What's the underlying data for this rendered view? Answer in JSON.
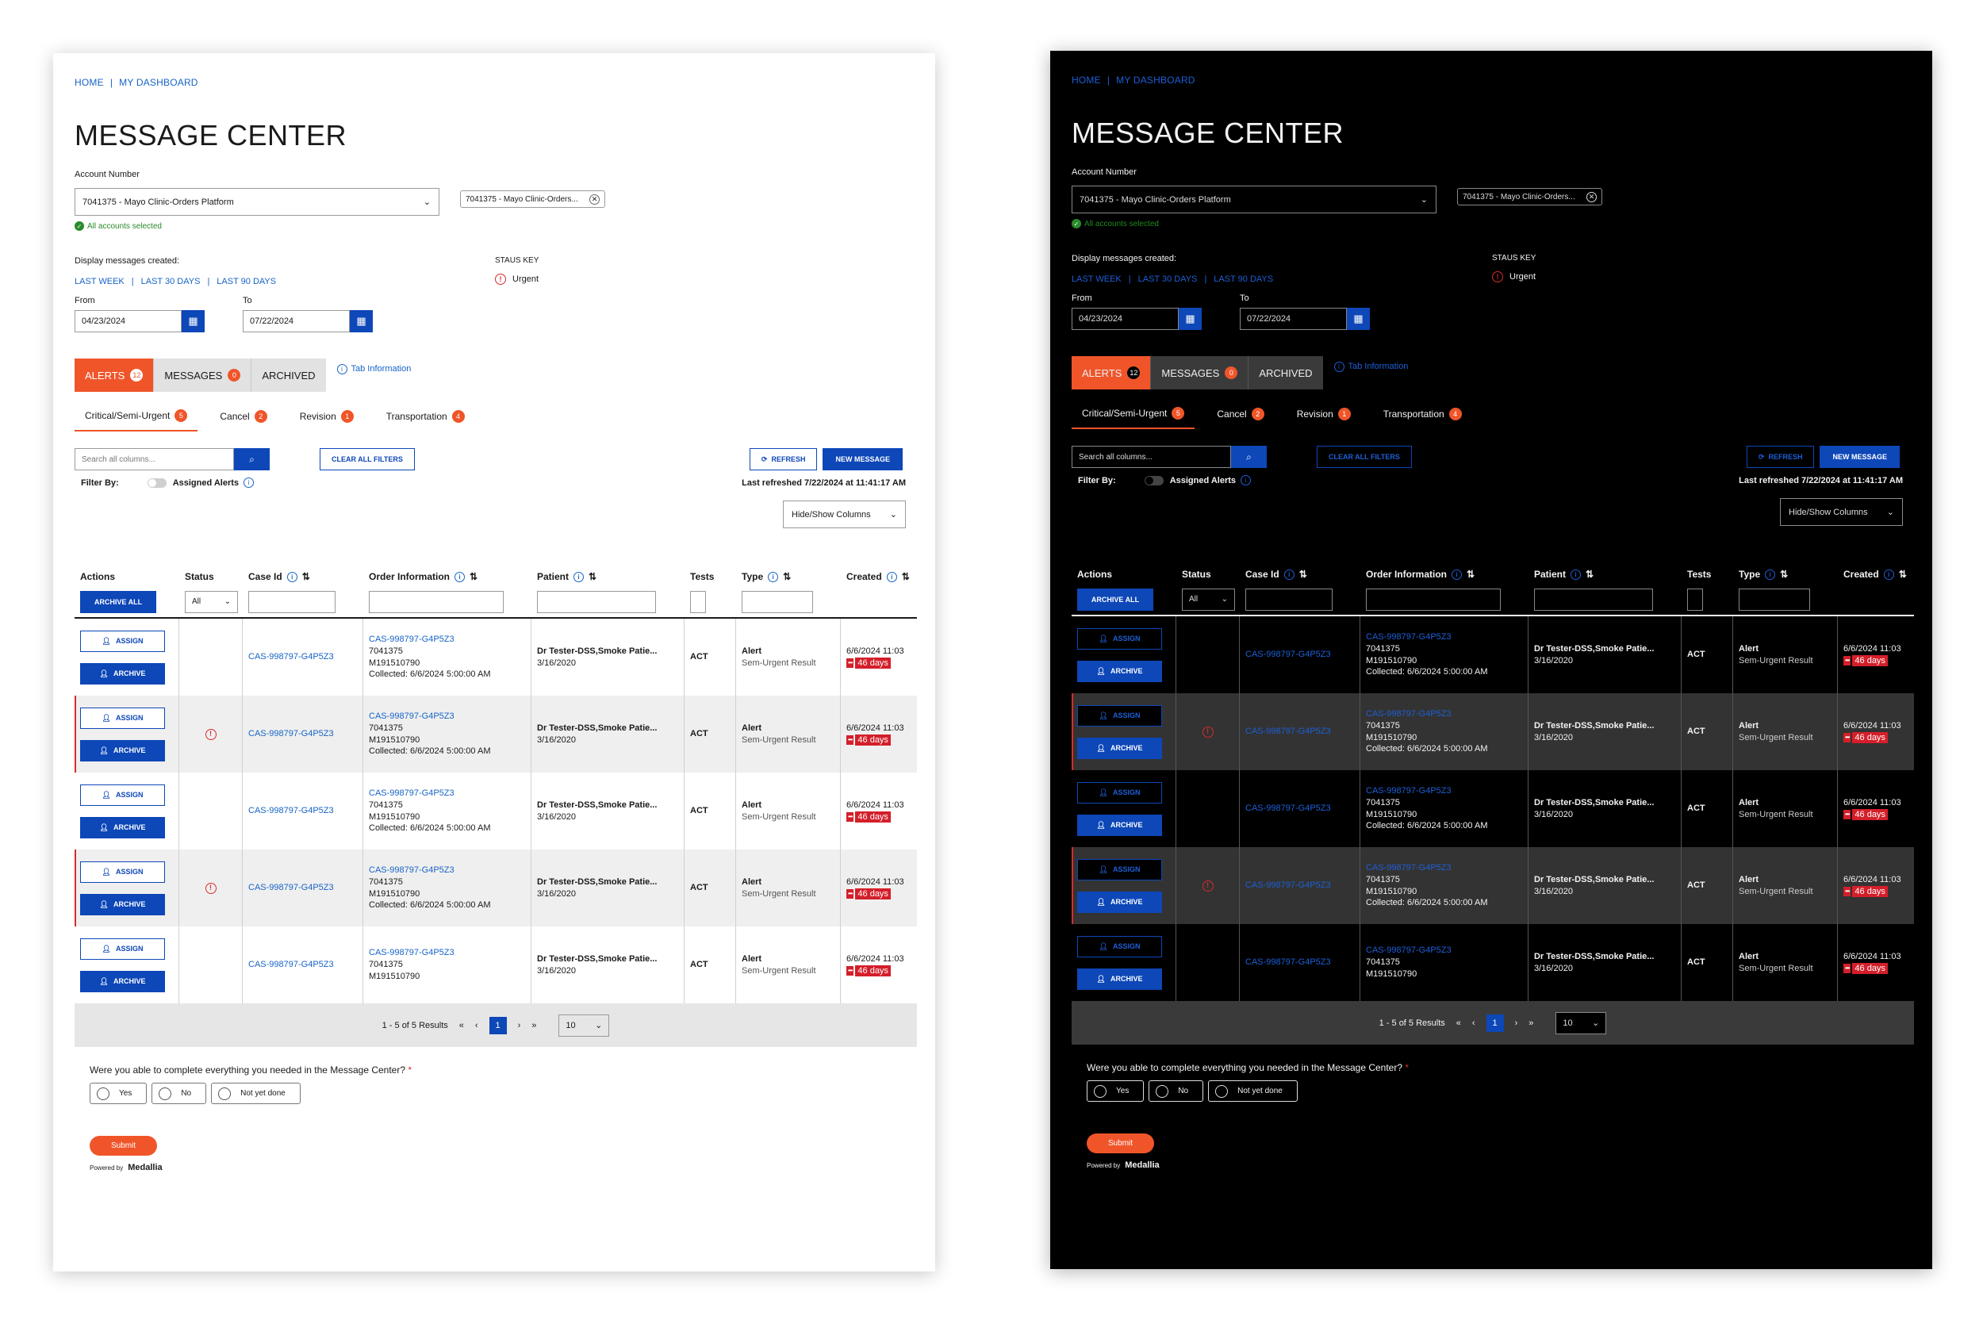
{
  "breadcrumb": {
    "home": "HOME",
    "sep": "|",
    "dashboard": "MY DASHBOARD"
  },
  "page_title": "MESSAGE CENTER",
  "account": {
    "label": "Account Number",
    "selected": "7041375 - Mayo Clinic-Orders Platform",
    "chip": "7041375 - Mayo Clinic-Orders...",
    "all_selected": "All accounts selected"
  },
  "display": {
    "label": "Display messages created:",
    "quick": [
      "LAST WEEK",
      "LAST 30 DAYS",
      "LAST 90 DAYS"
    ],
    "sep": "|",
    "from_label": "From",
    "from_value": "04/23/2024",
    "to_label": "To",
    "to_value": "07/22/2024"
  },
  "status_key": {
    "title": "STAUS KEY",
    "urgent": "Urgent",
    "urgent_glyph": "!"
  },
  "tabs": [
    {
      "label": "ALERTS",
      "badge": "12"
    },
    {
      "label": "MESSAGES",
      "badge": "0"
    },
    {
      "label": "ARCHIVED",
      "badge": ""
    }
  ],
  "tab_info": "Tab Information",
  "subtabs": [
    {
      "label": "Critical/Semi-Urgent",
      "badge": "5"
    },
    {
      "label": "Cancel",
      "badge": "2"
    },
    {
      "label": "Revision",
      "badge": "1"
    },
    {
      "label": "Transportation",
      "badge": "4"
    }
  ],
  "toolbar": {
    "search_placeholder": "Search all columns...",
    "clear_filters": "CLEAR ALL FILTERS",
    "refresh": "REFRESH",
    "new_message": "NEW MESSAGE",
    "filter_by": "Filter By:",
    "assigned_alerts": "Assigned Alerts",
    "last_refreshed": "Last refreshed 7/22/2024 at 11:41:17 AM",
    "hide_show": "Hide/Show Columns"
  },
  "table": {
    "headers": {
      "actions": "Actions",
      "status": "Status",
      "case_id": "Case Id",
      "order_info": "Order Information",
      "patient": "Patient",
      "tests": "Tests",
      "type": "Type",
      "created": "Created"
    },
    "archive_all": "ARCHIVE ALL",
    "status_filter": "All",
    "assign_label": "ASSIGN",
    "archive_label": "ARCHIVE",
    "rows": [
      {
        "urgent": false,
        "case_id": "CAS-998797-G4P5Z3",
        "order_id": "CAS-998797-G4P5Z3",
        "order_acct": "7041375",
        "order_num": "M191510790",
        "collected": "Collected: 6/6/2024 5:00:00 AM",
        "patient": "Dr Tester-DSS,Smoke Patie...",
        "dob": "3/16/2020",
        "tests": "ACT",
        "type": "Alert",
        "type_sub": "Sem-Urgent Result",
        "created": "6/6/2024 11:03",
        "dots": "•••",
        "days": "46 days"
      },
      {
        "urgent": true,
        "case_id": "CAS-998797-G4P5Z3",
        "order_id": "CAS-998797-G4P5Z3",
        "order_acct": "7041375",
        "order_num": "M191510790",
        "collected": "Collected: 6/6/2024 5:00:00 AM",
        "patient": "Dr Tester-DSS,Smoke Patie...",
        "dob": "3/16/2020",
        "tests": "ACT",
        "type": "Alert",
        "type_sub": "Sem-Urgent Result",
        "created": "6/6/2024 11:03",
        "dots": "•••",
        "days": "46 days"
      },
      {
        "urgent": false,
        "case_id": "CAS-998797-G4P5Z3",
        "order_id": "CAS-998797-G4P5Z3",
        "order_acct": "7041375",
        "order_num": "M191510790",
        "collected": "Collected: 6/6/2024 5:00:00 AM",
        "patient": "Dr Tester-DSS,Smoke Patie...",
        "dob": "3/16/2020",
        "tests": "ACT",
        "type": "Alert",
        "type_sub": "Sem-Urgent Result",
        "created": "6/6/2024 11:03",
        "dots": "•••",
        "days": "46 days"
      },
      {
        "urgent": true,
        "case_id": "CAS-998797-G4P5Z3",
        "order_id": "CAS-998797-G4P5Z3",
        "order_acct": "7041375",
        "order_num": "M191510790",
        "collected": "Collected: 6/6/2024 5:00:00 AM",
        "patient": "Dr Tester-DSS,Smoke Patie...",
        "dob": "3/16/2020",
        "tests": "ACT",
        "type": "Alert",
        "type_sub": "Sem-Urgent Result",
        "created": "6/6/2024 11:03",
        "dots": "•••",
        "days": "46 days"
      },
      {
        "urgent": false,
        "case_id": "CAS-998797-G4P5Z3",
        "order_id": "CAS-998797-G4P5Z3",
        "order_acct": "7041375",
        "order_num": "M191510790",
        "collected": "",
        "patient": "Dr Tester-DSS,Smoke Patie...",
        "dob": "3/16/2020",
        "tests": "ACT",
        "type": "Alert",
        "type_sub": "Sem-Urgent Result",
        "created": "6/6/2024 11:03",
        "dots": "•••",
        "days": "46 days"
      }
    ]
  },
  "pager": {
    "summary": "1 - 5 of 5 Results",
    "first": "«",
    "prev": "‹",
    "page": "1",
    "next": "›",
    "last": "»",
    "per_page": "10"
  },
  "survey": {
    "question": "Were you able to complete everything you needed in the Message Center?",
    "required": "*",
    "options": [
      "Yes",
      "No",
      "Not yet done"
    ],
    "submit": "Submit",
    "powered_by": "Powered by",
    "brand": "Medallia"
  },
  "theme": {
    "brand_blue": "#0d47b8",
    "accent_orange": "#f0552a",
    "urgent_red": "#d82b2b"
  }
}
